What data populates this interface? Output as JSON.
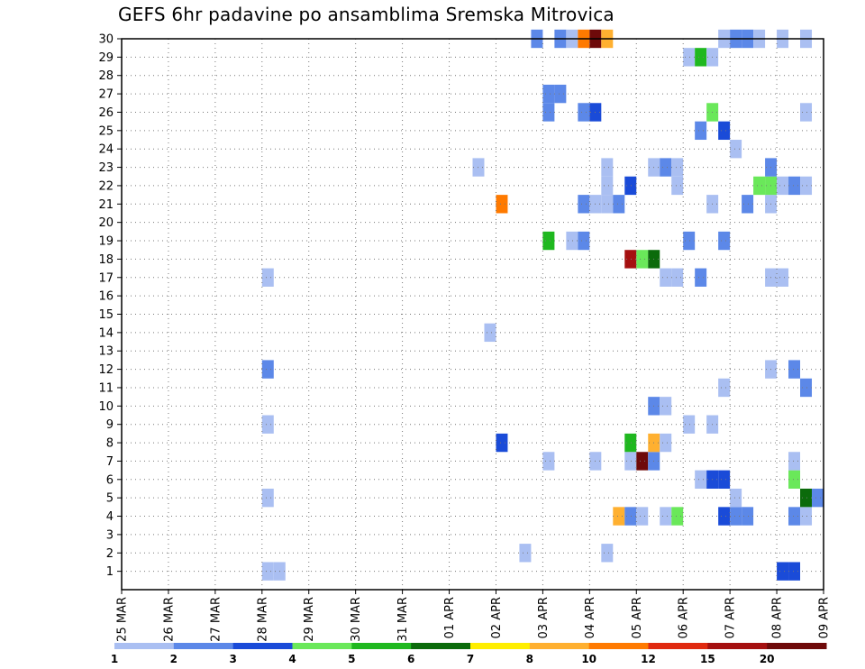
{
  "chart_data": {
    "type": "heatmap",
    "title": "GEFS 6hr padavine po ansamblima Sremska Mitrovica",
    "xlabel": "",
    "ylabel": "",
    "x_ticks": [
      "25 MAR",
      "26 MAR",
      "27 MAR",
      "28 MAR",
      "29 MAR",
      "30 MAR",
      "31 MAR",
      "01 APR",
      "02 APR",
      "03 APR",
      "04 APR",
      "05 APR",
      "06 APR",
      "07 APR",
      "08 APR",
      "09 APR"
    ],
    "xlim": [
      0,
      15
    ],
    "ylim": [
      0,
      30
    ],
    "y_ticks": [
      1,
      2,
      3,
      4,
      5,
      6,
      7,
      8,
      9,
      10,
      11,
      12,
      13,
      14,
      15,
      16,
      17,
      18,
      19,
      20,
      21,
      22,
      23,
      24,
      25,
      26,
      27,
      28,
      29,
      30
    ],
    "grid": true,
    "colorbar": {
      "labels": [
        "1",
        "2",
        "3",
        "4",
        "5",
        "6",
        "7",
        "8",
        "10",
        "12",
        "15",
        "20"
      ],
      "colors": [
        "#aabff2",
        "#5c88e8",
        "#1a4bd8",
        "#6ae85a",
        "#1fb81f",
        "#0b6b0b",
        "#ffee00",
        "#ffb030",
        "#ff7a00",
        "#e02a10",
        "#a51010",
        "#6e0a0a"
      ]
    },
    "cells": [
      {
        "t": 3.0,
        "m": 1,
        "v": 1
      },
      {
        "t": 3.25,
        "m": 1,
        "v": 1
      },
      {
        "t": 14.0,
        "m": 1,
        "v": 3
      },
      {
        "t": 14.25,
        "m": 1,
        "v": 3
      },
      {
        "t": 8.5,
        "m": 2,
        "v": 1
      },
      {
        "t": 10.25,
        "m": 2,
        "v": 1
      },
      {
        "t": 10.5,
        "m": 4,
        "v": 8
      },
      {
        "t": 10.75,
        "m": 4,
        "v": 2
      },
      {
        "t": 11.0,
        "m": 4,
        "v": 1
      },
      {
        "t": 11.5,
        "m": 4,
        "v": 1
      },
      {
        "t": 11.75,
        "m": 4,
        "v": 4
      },
      {
        "t": 12.75,
        "m": 4,
        "v": 3
      },
      {
        "t": 13.0,
        "m": 4,
        "v": 2
      },
      {
        "t": 13.25,
        "m": 4,
        "v": 2
      },
      {
        "t": 14.25,
        "m": 4,
        "v": 2
      },
      {
        "t": 14.5,
        "m": 4,
        "v": 1
      },
      {
        "t": 3.0,
        "m": 5,
        "v": 1
      },
      {
        "t": 13.0,
        "m": 5,
        "v": 1
      },
      {
        "t": 14.5,
        "m": 5,
        "v": 6
      },
      {
        "t": 14.75,
        "m": 5,
        "v": 2
      },
      {
        "t": 12.25,
        "m": 6,
        "v": 1
      },
      {
        "t": 12.5,
        "m": 6,
        "v": 3
      },
      {
        "t": 12.75,
        "m": 6,
        "v": 3
      },
      {
        "t": 14.25,
        "m": 6,
        "v": 4
      },
      {
        "t": 9.0,
        "m": 7,
        "v": 1
      },
      {
        "t": 10.0,
        "m": 7,
        "v": 1
      },
      {
        "t": 10.75,
        "m": 7,
        "v": 1
      },
      {
        "t": 11.0,
        "m": 7,
        "v": 12
      },
      {
        "t": 11.25,
        "m": 7,
        "v": 2
      },
      {
        "t": 14.25,
        "m": 7,
        "v": 1
      },
      {
        "t": 8.0,
        "m": 8,
        "v": 3
      },
      {
        "t": 10.75,
        "m": 8,
        "v": 5
      },
      {
        "t": 11.25,
        "m": 8,
        "v": 8
      },
      {
        "t": 11.5,
        "m": 8,
        "v": 1
      },
      {
        "t": 3.0,
        "m": 9,
        "v": 1
      },
      {
        "t": 12.0,
        "m": 9,
        "v": 1
      },
      {
        "t": 12.5,
        "m": 9,
        "v": 1
      },
      {
        "t": 11.25,
        "m": 10,
        "v": 2
      },
      {
        "t": 11.5,
        "m": 10,
        "v": 1
      },
      {
        "t": 12.75,
        "m": 11,
        "v": 1
      },
      {
        "t": 14.5,
        "m": 11,
        "v": 2
      },
      {
        "t": 3.0,
        "m": 12,
        "v": 2
      },
      {
        "t": 13.75,
        "m": 12,
        "v": 1
      },
      {
        "t": 14.25,
        "m": 12,
        "v": 2
      },
      {
        "t": 7.75,
        "m": 14,
        "v": 1
      },
      {
        "t": 15.0,
        "m": 15,
        "v": 1
      },
      {
        "t": 3.0,
        "m": 17,
        "v": 1
      },
      {
        "t": 11.5,
        "m": 17,
        "v": 1
      },
      {
        "t": 11.75,
        "m": 17,
        "v": 1
      },
      {
        "t": 12.25,
        "m": 17,
        "v": 2
      },
      {
        "t": 13.75,
        "m": 17,
        "v": 1
      },
      {
        "t": 14.0,
        "m": 17,
        "v": 1
      },
      {
        "t": 10.75,
        "m": 18,
        "v": 11
      },
      {
        "t": 11.0,
        "m": 18,
        "v": 4
      },
      {
        "t": 11.25,
        "m": 18,
        "v": 6
      },
      {
        "t": 9.0,
        "m": 19,
        "v": 5
      },
      {
        "t": 9.5,
        "m": 19,
        "v": 1
      },
      {
        "t": 9.75,
        "m": 19,
        "v": 2
      },
      {
        "t": 12.0,
        "m": 19,
        "v": 2
      },
      {
        "t": 12.75,
        "m": 19,
        "v": 2
      },
      {
        "t": 8.0,
        "m": 21,
        "v": 9
      },
      {
        "t": 9.75,
        "m": 21,
        "v": 2
      },
      {
        "t": 10.0,
        "m": 21,
        "v": 1
      },
      {
        "t": 10.25,
        "m": 21,
        "v": 1
      },
      {
        "t": 10.5,
        "m": 21,
        "v": 2
      },
      {
        "t": 12.5,
        "m": 21,
        "v": 1
      },
      {
        "t": 13.25,
        "m": 21,
        "v": 2
      },
      {
        "t": 13.75,
        "m": 21,
        "v": 1
      },
      {
        "t": 10.25,
        "m": 22,
        "v": 1
      },
      {
        "t": 10.75,
        "m": 22,
        "v": 3
      },
      {
        "t": 11.75,
        "m": 22,
        "v": 1
      },
      {
        "t": 13.5,
        "m": 22,
        "v": 4
      },
      {
        "t": 13.75,
        "m": 22,
        "v": 4
      },
      {
        "t": 14.0,
        "m": 22,
        "v": 1
      },
      {
        "t": 14.25,
        "m": 22,
        "v": 2
      },
      {
        "t": 14.5,
        "m": 22,
        "v": 1
      },
      {
        "t": 7.5,
        "m": 23,
        "v": 1
      },
      {
        "t": 10.25,
        "m": 23,
        "v": 1
      },
      {
        "t": 11.25,
        "m": 23,
        "v": 1
      },
      {
        "t": 11.5,
        "m": 23,
        "v": 2
      },
      {
        "t": 11.75,
        "m": 23,
        "v": 1
      },
      {
        "t": 13.75,
        "m": 23,
        "v": 2
      },
      {
        "t": 13.0,
        "m": 24,
        "v": 1
      },
      {
        "t": 12.25,
        "m": 25,
        "v": 2
      },
      {
        "t": 12.75,
        "m": 25,
        "v": 3
      },
      {
        "t": 9.0,
        "m": 26,
        "v": 2
      },
      {
        "t": 9.75,
        "m": 26,
        "v": 2
      },
      {
        "t": 10.0,
        "m": 26,
        "v": 3
      },
      {
        "t": 12.5,
        "m": 26,
        "v": 4
      },
      {
        "t": 14.5,
        "m": 26,
        "v": 1
      },
      {
        "t": 9.0,
        "m": 27,
        "v": 2
      },
      {
        "t": 9.25,
        "m": 27,
        "v": 2
      },
      {
        "t": 12.0,
        "m": 29,
        "v": 1
      },
      {
        "t": 12.25,
        "m": 29,
        "v": 5
      },
      {
        "t": 12.5,
        "m": 29,
        "v": 1
      },
      {
        "t": 8.75,
        "m": 30,
        "v": 2
      },
      {
        "t": 9.25,
        "m": 30,
        "v": 2
      },
      {
        "t": 9.5,
        "m": 30,
        "v": 1
      },
      {
        "t": 9.75,
        "m": 30,
        "v": 9
      },
      {
        "t": 10.0,
        "m": 30,
        "v": 12
      },
      {
        "t": 10.25,
        "m": 30,
        "v": 8
      },
      {
        "t": 12.75,
        "m": 30,
        "v": 1
      },
      {
        "t": 13.0,
        "m": 30,
        "v": 2
      },
      {
        "t": 13.25,
        "m": 30,
        "v": 2
      },
      {
        "t": 13.5,
        "m": 30,
        "v": 1
      },
      {
        "t": 14.0,
        "m": 30,
        "v": 1
      },
      {
        "t": 14.5,
        "m": 30,
        "v": 1
      }
    ]
  }
}
